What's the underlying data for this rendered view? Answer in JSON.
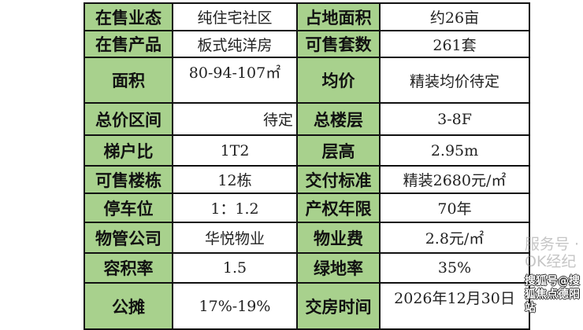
{
  "rows": [
    {
      "l1": "在售业态",
      "v1": "纯住宅社区",
      "l2": "占地面积",
      "v2": "约26亩"
    },
    {
      "l1": "在售产品",
      "v1": "板式纯洋房",
      "l2": "可售套数",
      "v2": "261套"
    },
    {
      "l1": "面积",
      "v1": "80-94-107㎡",
      "l2": "均价",
      "v2": "精装均价待定"
    },
    {
      "l1": "总价区间",
      "v1": "待定",
      "l2": "总楼层",
      "v2": "3-8F"
    },
    {
      "l1": "梯户比",
      "v1": "1T2",
      "l2": "层高",
      "v2": "2.95m"
    },
    {
      "l1": "可售楼栋",
      "v1": "12栋",
      "l2": "交付标准",
      "v2": "精装2680元/㎡"
    },
    {
      "l1": "停车位",
      "v1": "1：1.2",
      "l2": "产权年限",
      "v2": "70年"
    },
    {
      "l1": "物管公司",
      "v1": "华悦物业",
      "l2": "物业费",
      "v2": "2.8元/㎡"
    },
    {
      "l1": "容积率",
      "v1": "1.5",
      "l2": "绿地率",
      "v2": "35%"
    },
    {
      "l1": "公摊",
      "v1": "17%-19%",
      "l2": "交房时间",
      "v2": "2026年12月30日"
    }
  ],
  "watermarks": {
    "wechat": "服务号 · OK经纪",
    "sohu": "搜狐号@搜狐焦点德阳站"
  },
  "colors": {
    "label_bg": "#a8d18d",
    "border": "#111111"
  }
}
